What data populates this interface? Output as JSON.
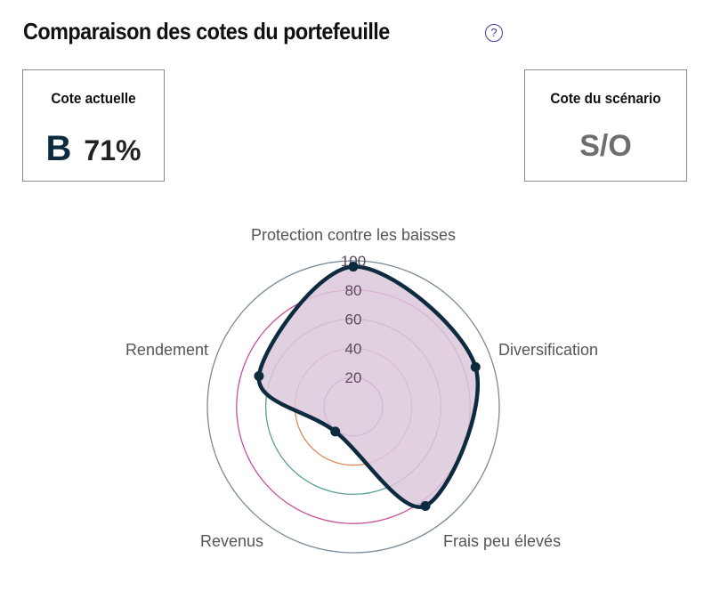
{
  "header": {
    "title": "Comparaison des cotes du portefeuille",
    "help_icon": "question-circle-icon"
  },
  "cards": {
    "current": {
      "label": "Cote actuelle",
      "grade": "B",
      "percent": "71%"
    },
    "scenario": {
      "label": "Cote du scénario",
      "value": "S/O"
    }
  },
  "chart_data": {
    "type": "radar",
    "categories": [
      "Protection contre les baisses",
      "Diversification",
      "Frais peu élevés",
      "Revenus",
      "Rendement"
    ],
    "series": [
      {
        "values": [
          96,
          88,
          84,
          21,
          68
        ],
        "color": "#0d2b3e",
        "fill": "#dcc8da"
      }
    ],
    "rlim": [
      0,
      100
    ],
    "ticks": [
      "20",
      "40",
      "60",
      "80",
      "100"
    ],
    "ring_colors": [
      "#8a6fb8",
      "#e08a5a",
      "#5a9e98",
      "#c8509a",
      "#7a8a98"
    ]
  }
}
